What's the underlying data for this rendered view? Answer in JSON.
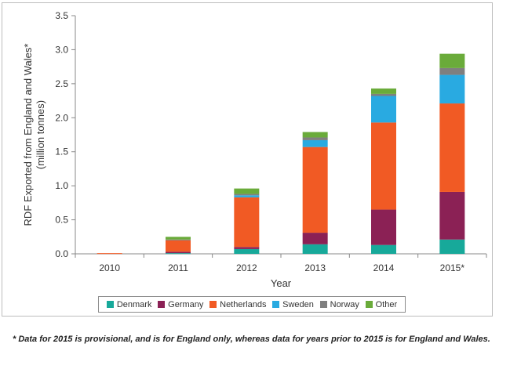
{
  "chart_data": {
    "type": "bar",
    "stacked": true,
    "categories": [
      "2010",
      "2011",
      "2012",
      "2013",
      "2014",
      "2015*"
    ],
    "series": [
      {
        "name": "Denmark",
        "color": "#17a99a",
        "values": [
          0.0,
          0.01,
          0.07,
          0.14,
          0.13,
          0.21
        ]
      },
      {
        "name": "Germany",
        "color": "#8b2155",
        "values": [
          0.0,
          0.02,
          0.03,
          0.17,
          0.52,
          0.7
        ]
      },
      {
        "name": "Netherlands",
        "color": "#f15a24",
        "values": [
          0.01,
          0.17,
          0.73,
          1.26,
          1.28,
          1.3
        ]
      },
      {
        "name": "Sweden",
        "color": "#29aae1",
        "values": [
          0.0,
          0.0,
          0.03,
          0.1,
          0.39,
          0.42
        ]
      },
      {
        "name": "Norway",
        "color": "#7f7f7f",
        "values": [
          0.0,
          0.01,
          0.02,
          0.04,
          0.03,
          0.1
        ]
      },
      {
        "name": "Other",
        "color": "#6aab3a",
        "values": [
          0.0,
          0.04,
          0.08,
          0.08,
          0.08,
          0.21
        ]
      }
    ],
    "xlabel": "Year",
    "ylabel_lines": [
      "RDF Exported from England and Wales*",
      "(million tonnes)"
    ],
    "ylim": [
      0,
      3.5
    ],
    "yticks": [
      "0.0",
      "0.5",
      "1.0",
      "1.5",
      "2.0",
      "2.5",
      "3.0",
      "3.5"
    ],
    "grid": false,
    "legend_position": "bottom"
  },
  "footnote": "*  Data for 2015 is provisional, and is for England only, whereas data for years prior to 2015 is for England and Wales."
}
